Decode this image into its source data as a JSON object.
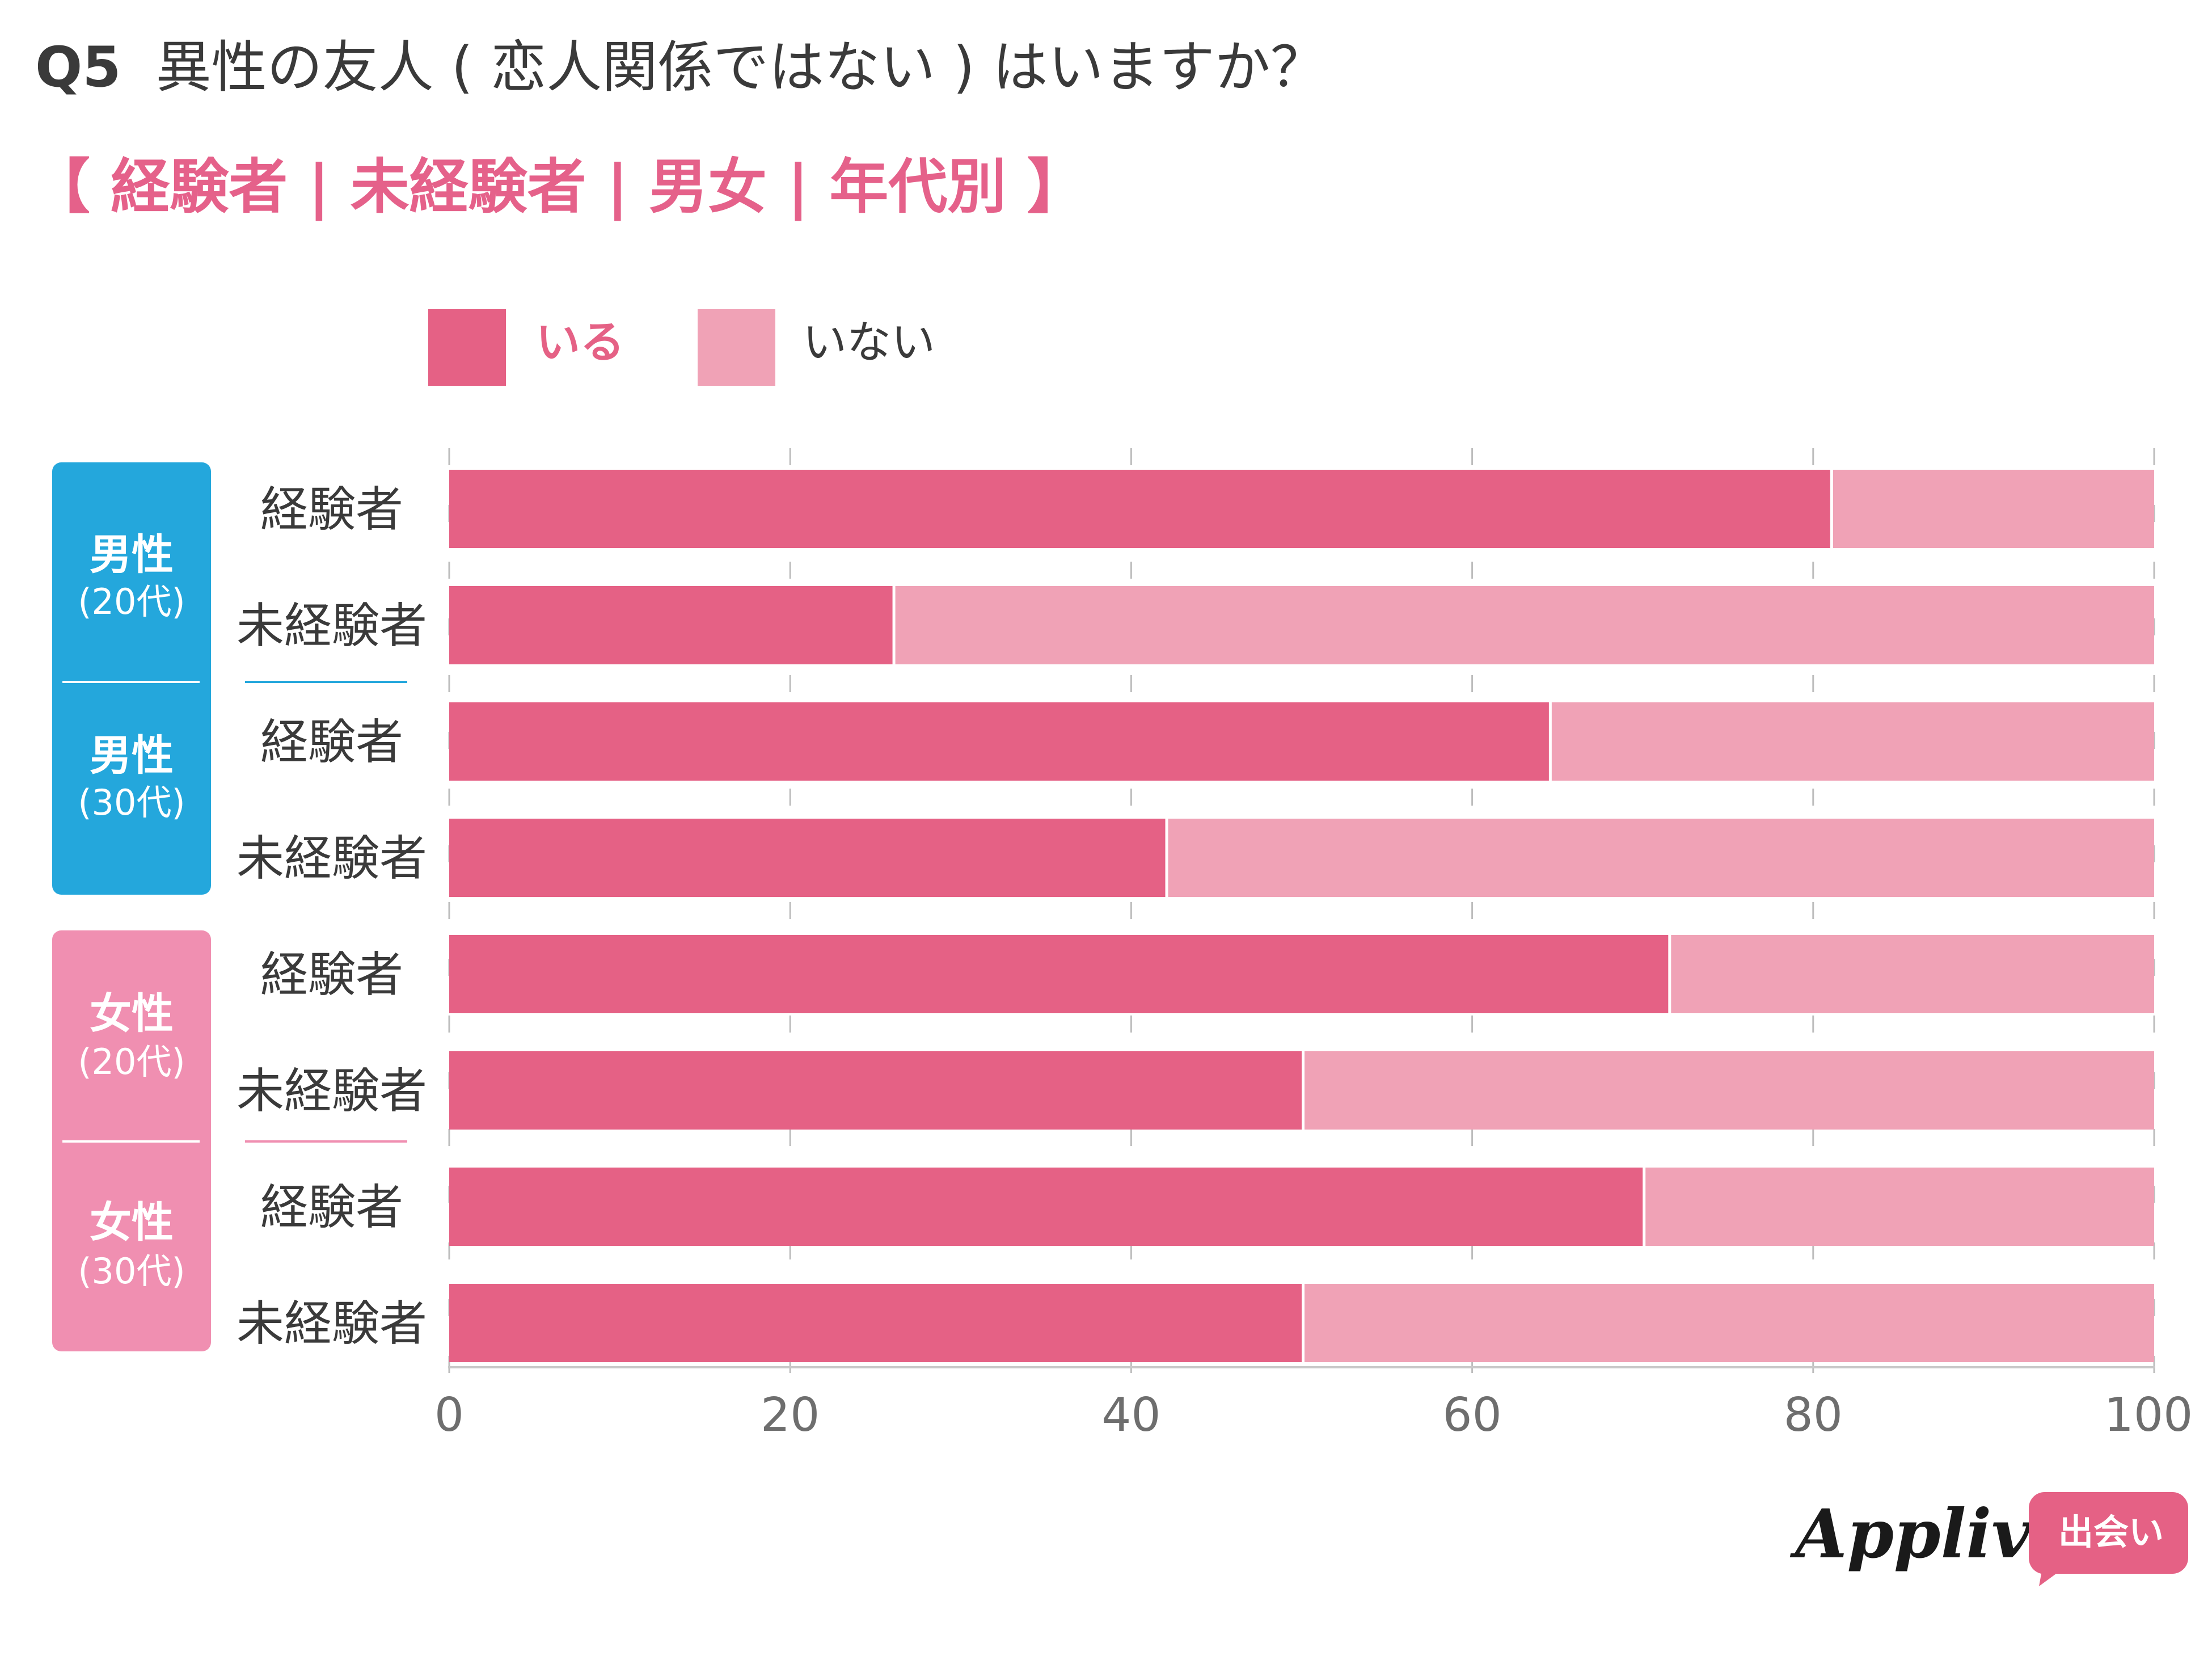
{
  "header": {
    "q_number": "Q5",
    "question": "異性の友人 ( 恋人関係ではない ) はいますか？",
    "subtitle": "【 経験者 | 未経験者 |  男女 |  年代別 】"
  },
  "legend": [
    {
      "label": "いる",
      "color": "#e56185"
    },
    {
      "label": "いない",
      "color": "#f0a2b6"
    }
  ],
  "groups": [
    {
      "main": "男性",
      "sub": "(20代)",
      "color": "#24a7dc"
    },
    {
      "main": "男性",
      "sub": "(30代)",
      "color": "#24a7dc"
    },
    {
      "main": "女性",
      "sub": "(20代)",
      "color": "#f08fb1"
    },
    {
      "main": "女性",
      "sub": "(30代)",
      "color": "#f08fb1"
    }
  ],
  "chart_data": {
    "type": "bar",
    "orientation": "horizontal",
    "stacked": true,
    "categories": [
      "経験者",
      "未経験者",
      "経験者",
      "未経験者",
      "経験者",
      "未経験者",
      "経験者",
      "未経験者"
    ],
    "series": [
      {
        "name": "いる",
        "values": [
          81,
          26,
          64.5,
          42,
          71.5,
          50,
          70,
          50
        ]
      },
      {
        "name": "いない",
        "values": [
          19,
          74,
          35.5,
          58,
          28.5,
          50,
          30,
          50
        ]
      }
    ],
    "xlim": [
      0,
      100
    ],
    "xticks": [
      0,
      20,
      40,
      60,
      80,
      100
    ],
    "grid": true,
    "legend_position": "top"
  },
  "logo": {
    "text": "Appliv",
    "badge": "出会い"
  }
}
